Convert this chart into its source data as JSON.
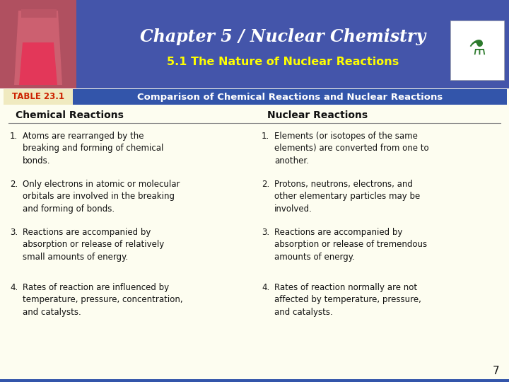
{
  "title": "Chapter 5 / Nuclear Chemistry",
  "subtitle": "5.1 The Nature of Nuclear Reactions",
  "title_color": "#FFFFFF",
  "subtitle_color": "#FFFF00",
  "header_bg": "#4455AA",
  "table_label": "TABLE 23.1",
  "table_label_bg": "#F0EAC0",
  "table_label_color": "#CC2200",
  "table_title": "Comparison of Chemical Reactions and Nuclear Reactions",
  "table_title_bg": "#3355AA",
  "table_title_color": "#FFFFFF",
  "table_bg": "#FDFDF0",
  "col1_header": "Chemical Reactions",
  "col2_header": "Nuclear Reactions",
  "col1_items": [
    "Atoms are rearranged by the\nbreaking and forming of chemical\nbonds.",
    "Only electrons in atomic or molecular\norbitals are involved in the breaking\nand forming of bonds.",
    "Reactions are accompanied by\nabsorption or release of relatively\nsmall amounts of energy.",
    "Rates of reaction are influenced by\ntemperature, pressure, concentration,\nand catalysts."
  ],
  "col2_items": [
    "Elements (or isotopes of the same\nelements) are converted from one to\nanother.",
    "Protons, neutrons, electrons, and\nother elementary particles may be\ninvolved.",
    "Reactions are accompanied by\nabsorption or release of tremendous\namounts of energy.",
    "Rates of reaction normally are not\naffected by temperature, pressure,\nand catalysts."
  ],
  "page_number": "7",
  "divider_color": "#888888",
  "bottom_bar_color": "#3355AA"
}
